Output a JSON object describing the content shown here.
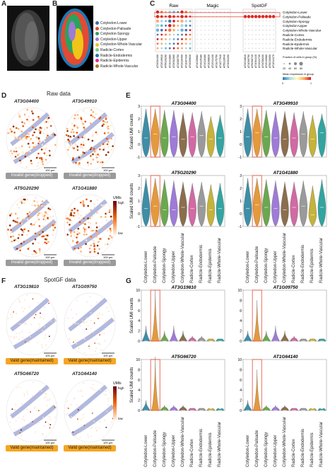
{
  "panels": {
    "A": "A",
    "B": "B",
    "C": "C",
    "D": "D",
    "E": "E",
    "F": "F",
    "G": "G"
  },
  "legend_b": {
    "items": [
      {
        "label": "Cotyledon-Lower",
        "color": "#3a6fb0"
      },
      {
        "label": "Cotyledon-Palisade",
        "color": "#e34a33"
      },
      {
        "label": "Cotyledon-Spongy",
        "color": "#2ca25f"
      },
      {
        "label": "Cotyledon-Upper",
        "color": "#9e7bd6"
      },
      {
        "label": "Cotyledon-Whole-Vascular",
        "color": "#f0c419"
      },
      {
        "label": "Radicle-Cortex",
        "color": "#7fc97f"
      },
      {
        "label": "Radicle-Endodermis",
        "color": "#1f78b4"
      },
      {
        "label": "Radicle-Epidermis",
        "color": "#e7298a"
      },
      {
        "label": "Radicle-Whole-Vascular",
        "color": "#a6761d"
      }
    ]
  },
  "panel_c": {
    "groups": [
      "Raw",
      "Magic",
      "SpotGF"
    ],
    "rows": [
      "Cotyledon-Lower",
      "Cotyledon-Palisade",
      "Cotyledon-Spongy",
      "Cotyledon-Upper",
      "Cotyledon-Whole-Vascular",
      "Radicle-Cortex",
      "Radicle-Endodermis",
      "Radicle-Epidermis",
      "Radicle-Whole-Vascular"
    ],
    "raw_genes": [
      "AT3G04400",
      "AT3G49910",
      "AT5G20290",
      "AT1G41880",
      "AT3G02560",
      "AT1G80750",
      "AT2G39460",
      "AT1G67430",
      "AT3G09630"
    ],
    "magic_genes": [
      "AT1G25682",
      "AT3G25180",
      "AT4G10180",
      "AT1G08830",
      "AT2G41430",
      "AT1G75750",
      "AT1G77940",
      "AT5G19540",
      "AT1G03150"
    ],
    "spotgf_genes": [
      "AT3G19810",
      "AT1G09750",
      "AT5G66720",
      "AT1G64140",
      "AT4G24730",
      "AT3G58200",
      "AT2G40980",
      "AT5G15650",
      "AT1G44170"
    ],
    "legend_fraction": "Fraction of cells in group (%)",
    "legend_fraction_ticks": [
      "20",
      "40",
      "60",
      "80"
    ],
    "legend_mean": "Mean expression in group",
    "legend_mean_ticks": [
      "0",
      "1"
    ]
  },
  "panel_d": {
    "title": "Raw data",
    "genes": [
      "AT3G04400",
      "AT3G49910",
      "AT5G20290",
      "AT1G41880"
    ],
    "tags": [
      "Invalid gene(dropped)",
      "Invalid gene(dropped)",
      "Invalid gene(dropped)",
      "Invalid gene(dropped)"
    ],
    "scalebar": "100 μm",
    "colorbar_title": "UMIs",
    "colorbar_high": "high",
    "colorbar_low": "low"
  },
  "panel_f": {
    "title": "SpotGF data",
    "genes": [
      "AT3G19810",
      "AT1G09750",
      "AT5G66720",
      "AT1G64140"
    ],
    "tags": [
      "Valid gene(maintained)",
      "Valid gene(maintained)",
      "Valid gene(maintained)",
      "Valid gene(maintained)"
    ],
    "scalebar": "100 μm",
    "colorbar_title": "UMIs",
    "colorbar_high": "high",
    "colorbar_low": "low"
  },
  "chart_data": [
    {
      "type": "violin",
      "panel": "E",
      "title": "AT3G04400",
      "ylabel": "Scaled UMI counts",
      "ylim": [
        -1,
        3
      ],
      "yticks": [
        "-1",
        "0",
        "1",
        "2",
        "3"
      ],
      "categories": [
        "Cotyledon-Lower",
        "Cotyledon-Palisade",
        "Cotyledon-Spongy",
        "Cotyledon-Upper",
        "Cotyledon-Whole-Vascular",
        "Radicle-Cortex",
        "Radicle-Endodermis",
        "Radicle-Epidermis",
        "Radicle-Whole-Vascular"
      ],
      "medians": [
        0.5,
        0.8,
        0.5,
        0.6,
        0.4,
        0.6,
        0.7,
        0.4,
        0.5
      ],
      "maxima": [
        2.8,
        2.8,
        2.7,
        2.7,
        2.5,
        2.5,
        2.6,
        2.2,
        2.3
      ]
    },
    {
      "type": "violin",
      "panel": "E",
      "title": "AT3G49910",
      "ylabel": "",
      "ylim": [
        -1,
        3
      ],
      "yticks": [
        "-1",
        "0",
        "1",
        "2",
        "3"
      ],
      "categories": [
        "Cotyledon-Lower",
        "Cotyledon-Palisade",
        "Cotyledon-Spongy",
        "Cotyledon-Upper",
        "Cotyledon-Whole-Vascular",
        "Radicle-Cortex",
        "Radicle-Endodermis",
        "Radicle-Epidermis",
        "Radicle-Whole-Vascular"
      ],
      "medians": [
        0.6,
        0.9,
        0.6,
        0.5,
        0.4,
        0.5,
        0.8,
        0.4,
        0.9
      ],
      "maxima": [
        2.8,
        2.8,
        2.7,
        2.6,
        2.6,
        2.5,
        2.6,
        2.3,
        2.4
      ]
    },
    {
      "type": "violin",
      "panel": "E",
      "title": "AT5G20290",
      "ylabel": "Scaled UMI counts",
      "ylim": [
        -1,
        3
      ],
      "yticks": [
        "-1",
        "0",
        "1",
        "2",
        "3"
      ],
      "categories": [
        "Cotyledon-Lower",
        "Cotyledon-Palisade",
        "Cotyledon-Spongy",
        "Cotyledon-Upper",
        "Cotyledon-Whole-Vascular",
        "Radicle-Cortex",
        "Radicle-Endodermis",
        "Radicle-Epidermis",
        "Radicle-Whole-Vascular"
      ],
      "medians": [
        0.4,
        0.6,
        0.3,
        0.3,
        0.5,
        0.4,
        0.6,
        0.3,
        0.4
      ],
      "maxima": [
        2.8,
        2.8,
        2.7,
        2.6,
        2.5,
        2.4,
        2.5,
        2.3,
        2.4
      ]
    },
    {
      "type": "violin",
      "panel": "E",
      "title": "AT1G41880",
      "ylabel": "",
      "ylim": [
        -1,
        3
      ],
      "yticks": [
        "-1",
        "0",
        "1",
        "2",
        "3"
      ],
      "categories": [
        "Cotyledon-Lower",
        "Cotyledon-Palisade",
        "Cotyledon-Spongy",
        "Cotyledon-Upper",
        "Cotyledon-Whole-Vascular",
        "Radicle-Cortex",
        "Radicle-Endodermis",
        "Radicle-Epidermis",
        "Radicle-Whole-Vascular"
      ],
      "medians": [
        0.4,
        0.7,
        0.5,
        0.4,
        0.3,
        0.5,
        0.6,
        -0.1,
        0.5
      ],
      "maxima": [
        2.8,
        2.8,
        2.7,
        2.6,
        2.5,
        2.5,
        2.6,
        2.2,
        2.7
      ]
    },
    {
      "type": "violin",
      "panel": "G",
      "title": "AT3G19810",
      "ylabel": "Scaled UMI counts",
      "ylim": [
        0,
        10
      ],
      "yticks": [
        "0",
        "2",
        "4",
        "6",
        "8",
        "10"
      ],
      "categories": [
        "Cotyledon-Lower",
        "Cotyledon-Palisade",
        "Cotyledon-Spongy",
        "Cotyledon-Upper",
        "Cotyledon-Whole-Vascular",
        "Radicle-Cortex",
        "Radicle-Endodermis",
        "Radicle-Epidermis",
        "Radicle-Whole-Vascular"
      ],
      "medians": [
        0,
        0,
        0,
        0,
        0,
        0,
        0,
        0,
        0
      ],
      "maxima": [
        3,
        10,
        2,
        3,
        2,
        1,
        1,
        0.5,
        0.5
      ]
    },
    {
      "type": "violin",
      "panel": "G",
      "title": "AT1G09750",
      "ylabel": "",
      "ylim": [
        0,
        10
      ],
      "yticks": [
        "0",
        "2",
        "4",
        "6",
        "8",
        "10"
      ],
      "categories": [
        "Cotyledon-Lower",
        "Cotyledon-Palisade",
        "Cotyledon-Spongy",
        "Cotyledon-Upper",
        "Cotyledon-Whole-Vascular",
        "Radicle-Cortex",
        "Radicle-Endodermis",
        "Radicle-Epidermis",
        "Radicle-Whole-Vascular"
      ],
      "medians": [
        0,
        0,
        0,
        0,
        0,
        0,
        0,
        0,
        0
      ],
      "maxima": [
        2,
        8,
        2,
        3,
        2,
        1,
        0.5,
        0.5,
        0.5
      ]
    },
    {
      "type": "violin",
      "panel": "G",
      "title": "AT5G66720",
      "ylabel": "Scaled UMI counts",
      "ylim": [
        0,
        10
      ],
      "yticks": [
        "0",
        "2",
        "4",
        "6",
        "8",
        "10"
      ],
      "categories": [
        "Cotyledon-Lower",
        "Cotyledon-Palisade",
        "Cotyledon-Spongy",
        "Cotyledon-Upper",
        "Cotyledon-Whole-Vascular",
        "Radicle-Cortex",
        "Radicle-Endodermis",
        "Radicle-Epidermis",
        "Radicle-Whole-Vascular"
      ],
      "medians": [
        0,
        0,
        0,
        0,
        0,
        0,
        0,
        0,
        0
      ],
      "maxima": [
        2,
        10.5,
        1,
        1,
        1,
        0.5,
        0.5,
        0.3,
        0.3
      ]
    },
    {
      "type": "violin",
      "panel": "G",
      "title": "AT1G64140",
      "ylabel": "",
      "ylim": [
        0,
        10
      ],
      "yticks": [
        "0",
        "2",
        "4",
        "6",
        "8",
        "10"
      ],
      "categories": [
        "Cotyledon-Lower",
        "Cotyledon-Palisade",
        "Cotyledon-Spongy",
        "Cotyledon-Upper",
        "Cotyledon-Whole-Vascular",
        "Radicle-Cortex",
        "Radicle-Endodermis",
        "Radicle-Epidermis",
        "Radicle-Whole-Vascular"
      ],
      "medians": [
        0,
        0,
        0,
        0,
        0,
        0,
        0,
        0,
        0
      ],
      "maxima": [
        2,
        8,
        1,
        1,
        1,
        0.5,
        0.5,
        0.3,
        0.3
      ]
    }
  ]
}
